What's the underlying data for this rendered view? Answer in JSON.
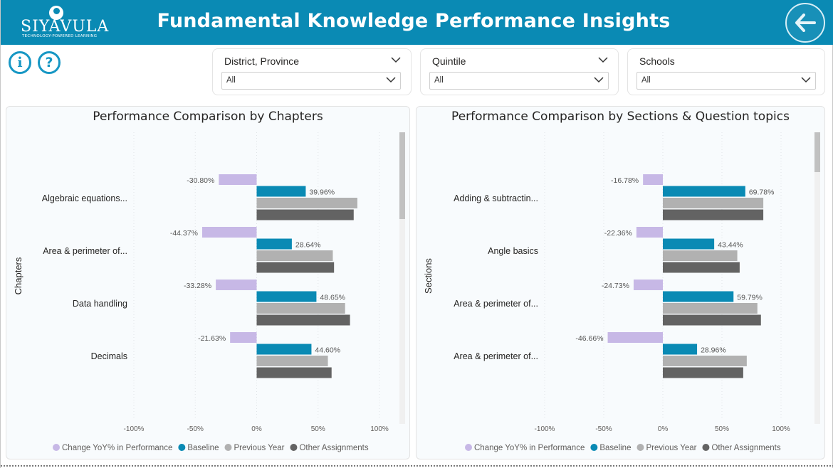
{
  "header": {
    "logo_name": "SIYAVULA",
    "logo_tagline": "TECHNOLOGY-POWERED LEARNING",
    "title": "Fundamental Knowledge Performance Insights",
    "background": "#0a8ab4"
  },
  "toolbar": {
    "info_icon": "info-icon",
    "help_icon": "help-icon",
    "back_icon": "arrow-left-icon"
  },
  "filters": [
    {
      "label": "District, Province",
      "value": "All"
    },
    {
      "label": "Quintile",
      "value": "All"
    },
    {
      "label": "Schools",
      "value": "All"
    }
  ],
  "colors": {
    "change": "#c7b8e6",
    "baseline": "#0a8ab4",
    "previous": "#b1b1b1",
    "other": "#636363"
  },
  "chart_data": [
    {
      "type": "bar",
      "orientation": "horizontal",
      "title": "Performance Comparison by Chapters",
      "ylabel": "Chapters",
      "xlabel": "",
      "xlim": [
        -100,
        100
      ],
      "x_ticks": [
        "-100%",
        "-50%",
        "0%",
        "50%",
        "100%"
      ],
      "categories": [
        "Algebraic equations...",
        "Area & perimeter of...",
        "Data handling",
        "Decimals"
      ],
      "series": [
        {
          "name": "Change YoY% in Performance",
          "values": [
            -30.8,
            -44.37,
            -33.28,
            -21.63
          ],
          "labels": [
            "-30.80%",
            "-44.37%",
            "-33.28%",
            "-21.63%"
          ]
        },
        {
          "name": "Baseline",
          "values": [
            39.96,
            28.64,
            48.65,
            44.6
          ],
          "labels": [
            "39.96%",
            "28.64%",
            "48.65%",
            "44.60%"
          ]
        },
        {
          "name": "Previous Year",
          "values": [
            82,
            62,
            72,
            58
          ]
        },
        {
          "name": "Other Assignments",
          "values": [
            79,
            63,
            76,
            61
          ]
        }
      ],
      "legend_position": "bottom",
      "grid": true
    },
    {
      "type": "bar",
      "orientation": "horizontal",
      "title": "Performance Comparison by Sections & Question topics",
      "ylabel": "Sections",
      "xlabel": "",
      "xlim": [
        -100,
        100
      ],
      "x_ticks": [
        "-100%",
        "-50%",
        "0%",
        "50%",
        "100%"
      ],
      "categories": [
        "Adding & subtractin...",
        "Angle basics",
        "Area & perimeter of...",
        "Area & perimeter of..."
      ],
      "series": [
        {
          "name": "Change YoY% in Performance",
          "values": [
            -16.78,
            -22.36,
            -24.73,
            -46.66
          ],
          "labels": [
            "-16.78%",
            "-22.36%",
            "-24.73%",
            "-46.66%"
          ]
        },
        {
          "name": "Baseline",
          "values": [
            69.78,
            43.44,
            59.79,
            28.96
          ],
          "labels": [
            "69.78%",
            "43.44%",
            "59.79%",
            "28.96%"
          ]
        },
        {
          "name": "Previous Year",
          "values": [
            85,
            63,
            80,
            71
          ]
        },
        {
          "name": "Other Assignments",
          "values": [
            85,
            65,
            83,
            68
          ]
        }
      ],
      "legend_position": "bottom",
      "grid": true
    }
  ]
}
